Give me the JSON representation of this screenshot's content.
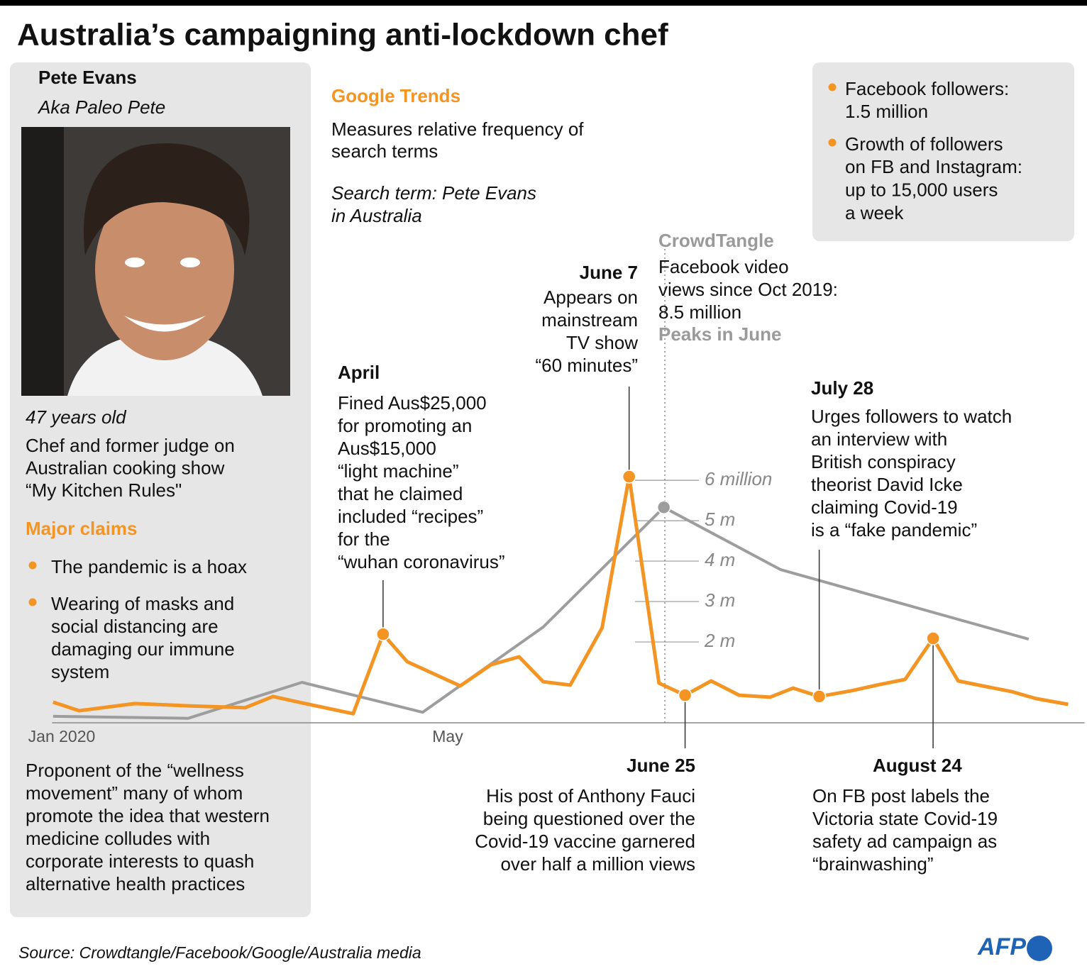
{
  "title": "Australia’s campaigning anti-lockdown chef",
  "profile": {
    "name": "Pete Evans",
    "alias": "Aka Paleo Pete",
    "age": "47  years old",
    "description": [
      "Chef and former judge on",
      "Australian cooking show",
      "“My Kitchen Rules\""
    ],
    "claims_heading": "Major claims",
    "claims": [
      [
        "The pandemic is a hoax"
      ],
      [
        "Wearing of masks and",
        "social distancing are",
        "damaging our immune",
        "system"
      ]
    ],
    "note": [
      "Proponent of the “wellness",
      "movement” many of whom",
      "promote the idea that western",
      "medicine colludes with",
      "corporate interests to quash",
      "alternative health practices"
    ]
  },
  "google_trends": {
    "description": [
      "Measures relative frequency of",
      "search terms"
    ],
    "search_term": [
      "Search term: Pete Evans",
      "in Australia"
    ]
  },
  "facebook_stats": [
    [
      "Facebook followers:",
      "1.5 million"
    ],
    [
      "Growth of followers",
      "on FB and Instagram:",
      "up to 15,000 users",
      "a week"
    ]
  ],
  "crowdtangle": {
    "description": [
      "Facebook video",
      "views since Oct 2019:",
      "8.5 million"
    ],
    "note": "Peaks in June"
  },
  "chart_data": {
    "type": "line",
    "xlim": [
      -0.1,
      10.6
    ],
    "xticks": [
      {
        "value": 0,
        "label": "Jan 2020"
      },
      {
        "value": 4,
        "label": "May"
      }
    ],
    "ylim": [
      0,
      6.09
    ],
    "yticks": [
      {
        "value": 2,
        "label": "2 m"
      },
      {
        "value": 3,
        "label": "3 m"
      },
      {
        "value": 4,
        "label": "4 m"
      },
      {
        "value": 5,
        "label": "5 m"
      },
      {
        "value": 6,
        "label": "6 million"
      }
    ],
    "y2lim": [
      0,
      100
    ],
    "series": [
      {
        "name": "Google Trends",
        "color": "#f39423",
        "axis": "y2",
        "x": [
          -0.09,
          0.18,
          0.76,
          1.31,
          1.9,
          2.19,
          2.49,
          3.02,
          3.33,
          3.58,
          4.13,
          4.45,
          4.74,
          4.99,
          5.27,
          5.6,
          5.88,
          6.19,
          6.46,
          6.73,
          7.02,
          7.34,
          7.58,
          7.85,
          8.18,
          8.48,
          8.74,
          9.03,
          9.29,
          9.58,
          9.84,
          10.1,
          10.43
        ],
        "values": [
          8.4,
          4.9,
          7.8,
          6.9,
          6.1,
          10.7,
          8.1,
          3.7,
          36.0,
          24.8,
          15.0,
          23.6,
          26.8,
          16.7,
          15.3,
          38.6,
          100,
          16.1,
          11.2,
          17.0,
          11.2,
          10.4,
          14.1,
          10.7,
          13.0,
          15.6,
          17.6,
          34.3,
          17.0,
          14.7,
          12.7,
          9.8,
          7.5
        ]
      },
      {
        "name": "CrowdTangle",
        "color": "#9d9d9e",
        "x": [
          -0.09,
          1.31,
          2.49,
          3.74,
          4.99,
          6.24,
          7.45,
          10.02
        ],
        "values": [
          0.16,
          0.11,
          1.0,
          0.26,
          2.37,
          5.33,
          3.79,
          2.07
        ]
      }
    ],
    "annotations": [
      {
        "date": "April",
        "text": [
          "Fined Aus$25,000",
          "for promoting an",
          "Aus$15,000",
          "“light machine”",
          "that he claimed",
          "included “recipes”",
          "for the",
          "“wuhan coronavirus”"
        ]
      },
      {
        "date": "June 7",
        "text": [
          "Appears on",
          "mainstream",
          "TV show",
          "“60 minutes”"
        ]
      },
      {
        "date": "June 25",
        "text": [
          "His post of Anthony Fauci",
          "being questioned over the",
          "Covid-19 vaccine garnered",
          "over half a million views"
        ]
      },
      {
        "date": "July 28",
        "text": [
          "Urges followers to watch",
          "an interview with",
          "British conspiracy",
          "theorist David Icke",
          "claiming Covid-19",
          "is a “fake pandemic”"
        ]
      },
      {
        "date": "August 24",
        "text": [
          "On FB post labels the",
          "Victoria state Covid-19",
          "safety ad campaign as",
          "“brainwashing”"
        ]
      }
    ]
  },
  "source": "Source: Crowdtangle/Facebook/Google/Australia media",
  "credit": "AFP"
}
